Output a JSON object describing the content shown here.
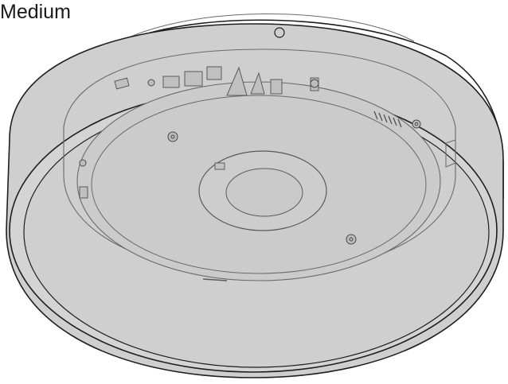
{
  "caption": {
    "text": "Medium"
  },
  "colors": {
    "body_fill": "#cfcfd0",
    "rim_fill": "#d7d7d8",
    "outline": "#1e1e1e",
    "inner_line": "#6a6a6a",
    "screw_fill": "#bdbdbe"
  },
  "figure": {
    "icon": "ceiling-mount-device-illustration"
  }
}
